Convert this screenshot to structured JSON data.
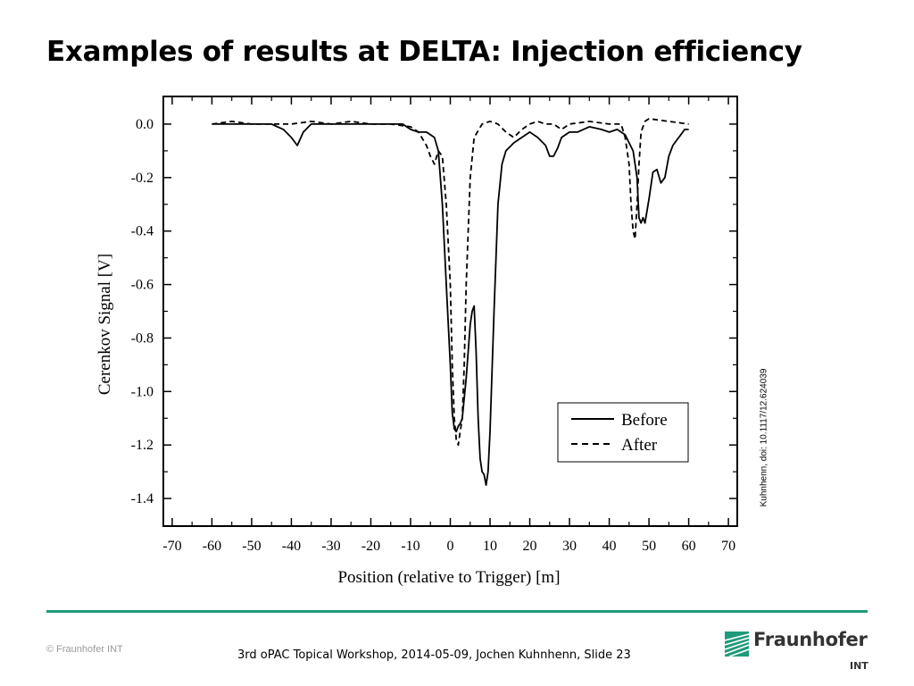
{
  "slide": {
    "title": "Examples of results at DELTA: Injection efficiency",
    "citation": "Kuhnhenn, doi: 10.1117/12.624039",
    "copyright": "© Fraunhofer INT",
    "footer": "3rd oPAC Topical Workshop, 2014-05-09, Jochen Kuhnhenn, Slide 23",
    "logo_name": "Fraunhofer",
    "logo_sub": "INT",
    "accent_color": "#1f9a7a"
  },
  "chart_data": {
    "type": "line",
    "title": "",
    "xlabel": "Position (relative to Trigger) [m]",
    "ylabel": "Cerenkov Signal [V]",
    "xlim": [
      -72,
      72
    ],
    "ylim": [
      -1.5,
      0.1
    ],
    "xticks": [
      -70,
      -60,
      -50,
      -40,
      -30,
      -20,
      -10,
      0,
      10,
      20,
      30,
      40,
      50,
      60,
      70
    ],
    "xtick_labels": [
      "-70",
      "-60",
      "-50",
      "-40",
      "-30",
      "-20",
      "-10",
      "0",
      "10",
      "20",
      "30",
      "40",
      "50",
      "60",
      "70"
    ],
    "yticks": [
      0.0,
      -0.2,
      -0.4,
      -0.6,
      -0.8,
      -1.0,
      -1.2,
      -1.4
    ],
    "ytick_labels": [
      "0.0",
      "-0.2",
      "-0.4",
      "-0.6",
      "-0.8",
      "-1.0",
      "-1.2",
      "-1.4"
    ],
    "legend_position": "bottom-right",
    "grid": false,
    "series": [
      {
        "name": "Before",
        "style": "solid",
        "x": [
          -60,
          -55,
          -50,
          -45,
          -42,
          -40,
          -38.5,
          -37,
          -35,
          -30,
          -25,
          -20,
          -15,
          -12,
          -10,
          -8,
          -6,
          -4,
          -3,
          -2,
          -1,
          0,
          0.5,
          1,
          1.5,
          2,
          2.5,
          3,
          4,
          5,
          5.5,
          6,
          6.5,
          7,
          7.5,
          8,
          8.5,
          9,
          9.5,
          10,
          11,
          12,
          13,
          14,
          16,
          18,
          20,
          22,
          24,
          25,
          26,
          27,
          28,
          30,
          32,
          35,
          38,
          40,
          42,
          44,
          45,
          46,
          46.5,
          47,
          47.5,
          48,
          48.5,
          49,
          50,
          51,
          52,
          53,
          54,
          55,
          56,
          57,
          58,
          59,
          60
        ],
        "y": [
          0.0,
          0.0,
          0.0,
          0.0,
          -0.02,
          -0.05,
          -0.08,
          -0.03,
          0.0,
          0.0,
          0.0,
          0.0,
          0.0,
          0.0,
          -0.02,
          -0.03,
          -0.03,
          -0.05,
          -0.1,
          -0.3,
          -0.6,
          -0.9,
          -1.08,
          -1.14,
          -1.15,
          -1.13,
          -1.12,
          -1.1,
          -0.95,
          -0.75,
          -0.7,
          -0.68,
          -0.85,
          -1.1,
          -1.25,
          -1.3,
          -1.31,
          -1.35,
          -1.3,
          -1.15,
          -0.7,
          -0.3,
          -0.15,
          -0.1,
          -0.07,
          -0.05,
          -0.03,
          -0.05,
          -0.08,
          -0.12,
          -0.12,
          -0.09,
          -0.05,
          -0.03,
          -0.03,
          -0.01,
          -0.02,
          -0.03,
          -0.02,
          -0.04,
          -0.07,
          -0.1,
          -0.15,
          -0.2,
          -0.35,
          -0.37,
          -0.35,
          -0.37,
          -0.28,
          -0.18,
          -0.17,
          -0.22,
          -0.2,
          -0.12,
          -0.08,
          -0.06,
          -0.04,
          -0.02,
          -0.02
        ]
      },
      {
        "name": "After",
        "style": "dashed",
        "x": [
          -60,
          -55,
          -50,
          -45,
          -40,
          -35,
          -30,
          -25,
          -20,
          -15,
          -10,
          -8,
          -6,
          -5,
          -4,
          -3,
          -2,
          -1,
          0,
          0.5,
          1,
          1.5,
          2,
          2.5,
          3,
          3.5,
          4,
          5,
          6,
          8,
          10,
          12,
          14,
          16,
          18,
          20,
          22,
          24,
          26,
          28,
          30,
          35,
          40,
          43,
          44,
          45,
          45.5,
          46,
          46.5,
          47,
          47.5,
          48,
          49,
          50,
          55,
          60
        ],
        "y": [
          0.0,
          0.01,
          0.0,
          0.0,
          0.0,
          0.01,
          0.0,
          0.01,
          0.0,
          0.0,
          -0.01,
          -0.03,
          -0.08,
          -0.12,
          -0.15,
          -0.1,
          -0.12,
          -0.3,
          -0.6,
          -0.9,
          -1.1,
          -1.18,
          -1.2,
          -1.15,
          -1.1,
          -0.9,
          -0.6,
          -0.2,
          -0.05,
          0.0,
          0.01,
          0.0,
          -0.03,
          -0.05,
          -0.02,
          0.0,
          0.01,
          0.0,
          0.0,
          -0.02,
          0.0,
          0.01,
          0.0,
          0.0,
          -0.05,
          -0.15,
          -0.3,
          -0.4,
          -0.43,
          -0.3,
          -0.15,
          -0.03,
          0.01,
          0.02,
          0.01,
          0.0
        ]
      }
    ]
  }
}
